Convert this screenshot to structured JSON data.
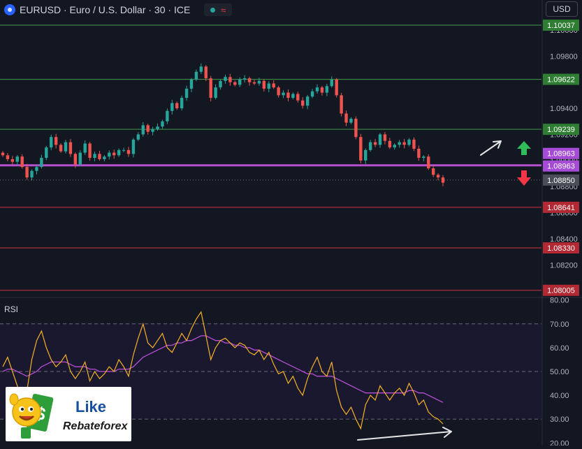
{
  "header": {
    "title": "EURUSD · Euro / U.S. Dollar · 30 · ICE",
    "status_symbol": "≈"
  },
  "currency_button": "USD",
  "icons": {
    "symbol": "globe-flag-icon",
    "status_dot": "market-open-dot-icon",
    "status_wave": "delayed-wave-icon",
    "up": "green-up-arrow-icon",
    "down": "red-down-arrow-icon"
  },
  "colors": {
    "background": "#131722",
    "bull": "#26a69a",
    "bear": "#ef5350",
    "green_level": "#4caf50",
    "red_level": "#f23645",
    "pivot": "#c054d8",
    "current_price": "#787b86",
    "rsi_line": "#f7b125",
    "rsi_ma": "#b64fd6"
  },
  "rsi_label": "RSI",
  "logo": {
    "line1": "Like",
    "line2": "Rebateforex"
  },
  "chart_data": {
    "type": "candlestick",
    "symbol": "EURUSD",
    "timeframe": "30",
    "price_axis_ticks": [
      "1.10000",
      "1.09800",
      "1.09600",
      "1.09400",
      "1.09200",
      "1.09000",
      "1.08800",
      "1.08600",
      "1.08400",
      "1.08200",
      "1.08000"
    ],
    "price_ylim": [
      1.0795,
      1.1023
    ],
    "levels": [
      {
        "label": "1.10037",
        "value": 1.10037,
        "kind": "resistance"
      },
      {
        "label": "1.09622",
        "value": 1.09622,
        "kind": "resistance"
      },
      {
        "label": "1.09239",
        "value": 1.09239,
        "kind": "resistance"
      },
      {
        "label": "1.08963",
        "value": 1.08963,
        "kind": "pivot"
      },
      {
        "label": "1.08641",
        "value": 1.08641,
        "kind": "support"
      },
      {
        "label": "1.08330",
        "value": 1.0833,
        "kind": "support"
      },
      {
        "label": "1.08005",
        "value": 1.08005,
        "kind": "support"
      }
    ],
    "pivot_badges": [
      "1.08963",
      "1.08963"
    ],
    "current_price": {
      "label": "1.08850",
      "value": 1.0885
    },
    "close_path": [
      1.0904,
      1.0901,
      1.0899,
      1.0903,
      1.0895,
      1.0887,
      1.0892,
      1.0895,
      1.0902,
      1.091,
      1.0918,
      1.0912,
      1.0907,
      1.0914,
      1.0905,
      1.0897,
      1.0906,
      1.0913,
      1.0902,
      1.0905,
      1.0901,
      1.0903,
      1.0906,
      1.0904,
      1.0908,
      1.0908,
      1.0905,
      1.0916,
      1.092,
      1.0927,
      1.0922,
      1.0924,
      1.0926,
      1.093,
      1.0938,
      1.0944,
      1.094,
      1.0948,
      1.0955,
      1.0962,
      1.0968,
      1.0972,
      1.0963,
      1.0948,
      1.0956,
      1.0961,
      1.0964,
      1.096,
      1.0958,
      1.0962,
      1.0963,
      1.096,
      1.0959,
      1.0961,
      1.0955,
      1.0959,
      1.0956,
      1.095,
      1.0952,
      1.0948,
      1.0951,
      1.0946,
      1.0942,
      1.0949,
      1.0953,
      1.0956,
      1.0952,
      1.0957,
      1.0962,
      1.095,
      1.0936,
      1.0929,
      1.0932,
      1.0918,
      1.09,
      1.0908,
      1.0914,
      1.0912,
      1.092,
      1.0915,
      1.091,
      1.0912,
      1.0914,
      1.0912,
      1.0916,
      1.0909,
      1.0902,
      1.0903,
      1.0894,
      1.0889,
      1.0887,
      1.0883
    ],
    "rsi": {
      "type": "line",
      "label": "RSI",
      "ticks": [
        "80.00",
        "70.00",
        "60.00",
        "50.00",
        "40.00",
        "30.00",
        "20.00"
      ],
      "ylim": [
        19.5,
        80.5
      ],
      "bands": [
        70,
        50,
        30
      ],
      "values": [
        52,
        56,
        50,
        44,
        38,
        42,
        55,
        63,
        67,
        60,
        55,
        52,
        54,
        57,
        50,
        47,
        50,
        54,
        46,
        50,
        47,
        49,
        52,
        50,
        55,
        52,
        48,
        57,
        64,
        70,
        62,
        60,
        63,
        66,
        60,
        58,
        62,
        66,
        63,
        68,
        72,
        75,
        65,
        55,
        60,
        63,
        64,
        62,
        60,
        62,
        61,
        58,
        57,
        59,
        55,
        58,
        53,
        49,
        50,
        45,
        48,
        43,
        40,
        47,
        52,
        56,
        50,
        48,
        54,
        42,
        35,
        32,
        35,
        30,
        26,
        36,
        40,
        38,
        44,
        41,
        38,
        41,
        43,
        40,
        45,
        41,
        36,
        38,
        33,
        31,
        30,
        28
      ],
      "ma_values": [
        50,
        51,
        51,
        50,
        49,
        48,
        49,
        50,
        52,
        53,
        54,
        54,
        54,
        54,
        53,
        52,
        52,
        52,
        51,
        51,
        50,
        50,
        50,
        50,
        51,
        51,
        51,
        52,
        54,
        56,
        57,
        58,
        59,
        60,
        61,
        61,
        62,
        62,
        63,
        63,
        64,
        65,
        65,
        64,
        63,
        63,
        62,
        62,
        61,
        61,
        60,
        60,
        59,
        59,
        58,
        57,
        56,
        55,
        54,
        53,
        52,
        51,
        50,
        49,
        49,
        48,
        48,
        48,
        48,
        47,
        46,
        45,
        44,
        43,
        42,
        41,
        41,
        41,
        41,
        41,
        41,
        41,
        41,
        41,
        42,
        42,
        41,
        41,
        40,
        39,
        38,
        37
      ]
    }
  }
}
